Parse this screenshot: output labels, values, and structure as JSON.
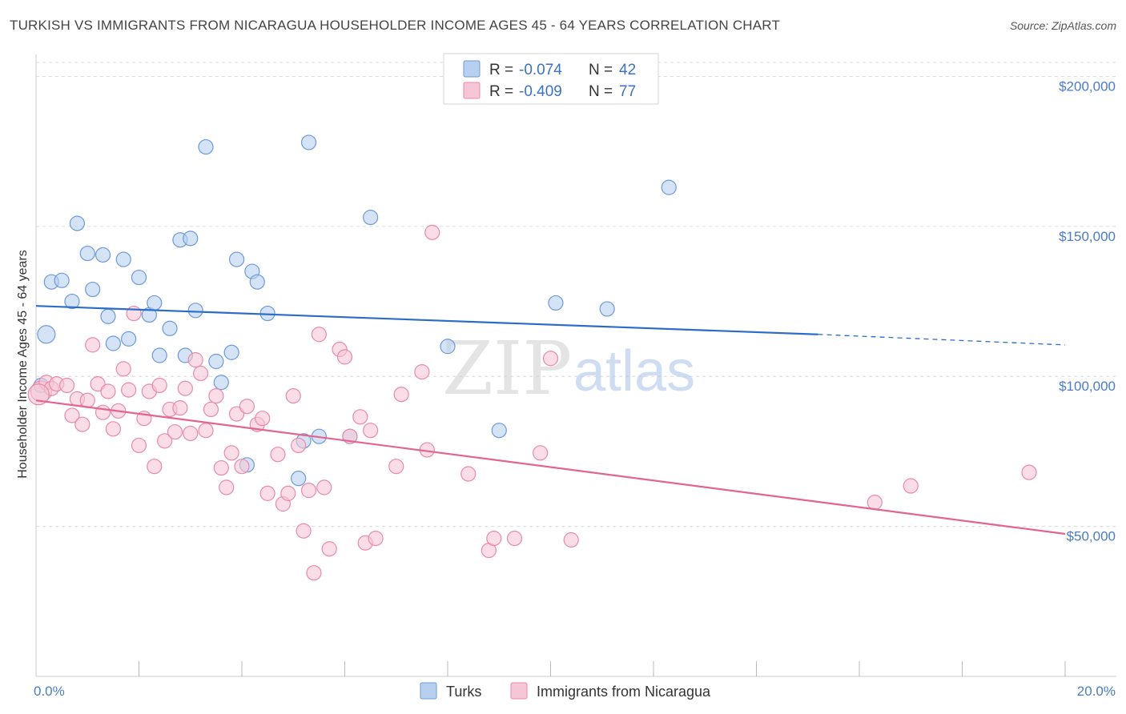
{
  "title": "TURKISH VS IMMIGRANTS FROM NICARAGUA HOUSEHOLDER INCOME AGES 45 - 64 YEARS CORRELATION CHART",
  "source": "Source: ZipAtlas.com",
  "watermark": {
    "zip": "ZIP",
    "atlas": "atlas"
  },
  "legend": {
    "rows": [
      {
        "r_label": "R =",
        "r_value": "-0.074",
        "n_label": "N =",
        "n_value": "42"
      },
      {
        "r_label": "R =",
        "r_value": "-0.409",
        "n_label": "N =",
        "n_value": "77"
      }
    ]
  },
  "colors": {
    "turks_fill": "#b8d0f0",
    "turks_stroke": "#6d9ad8",
    "turks_line": "#2b6cc9",
    "nic_fill": "#f7c6d6",
    "nic_stroke": "#e88aa9",
    "nic_line": "#e2648f",
    "grid": "#dcdcdc",
    "axis_text": "#4a7cc7"
  },
  "chart_data": {
    "type": "scatter",
    "title": "TURKISH VS IMMIGRANTS FROM NICARAGUA HOUSEHOLDER INCOME AGES 45 - 64 YEARS CORRELATION CHART",
    "xlabel": "",
    "ylabel": "Householder Income Ages 45 - 64 years",
    "xlim": [
      0,
      20
    ],
    "ylim": [
      0,
      210000
    ],
    "x_tick_labels": [
      "0.0%",
      "20.0%"
    ],
    "y_ticks": [
      50000,
      100000,
      150000,
      200000
    ],
    "y_tick_labels": [
      "$50,000",
      "$100,000",
      "$150,000",
      "$200,000"
    ],
    "grid": true,
    "legend_position": "top-center",
    "series": [
      {
        "name": "Turks",
        "r": -0.074,
        "n": 42,
        "points": [
          [
            0.2,
            114000
          ],
          [
            0.3,
            131500
          ],
          [
            0.5,
            132000
          ],
          [
            0.7,
            125000
          ],
          [
            0.8,
            151000
          ],
          [
            1.0,
            141000
          ],
          [
            1.1,
            129000
          ],
          [
            1.3,
            140500
          ],
          [
            1.4,
            120000
          ],
          [
            1.5,
            111000
          ],
          [
            1.7,
            139000
          ],
          [
            1.8,
            112500
          ],
          [
            2.0,
            133000
          ],
          [
            2.2,
            120500
          ],
          [
            2.3,
            124500
          ],
          [
            2.4,
            107000
          ],
          [
            2.6,
            116000
          ],
          [
            2.8,
            145500
          ],
          [
            2.9,
            107000
          ],
          [
            3.0,
            146000
          ],
          [
            3.1,
            122000
          ],
          [
            3.3,
            176500
          ],
          [
            3.5,
            105000
          ],
          [
            3.6,
            98000
          ],
          [
            3.8,
            108000
          ],
          [
            3.9,
            139000
          ],
          [
            4.1,
            70500
          ],
          [
            4.2,
            135000
          ],
          [
            4.3,
            131500
          ],
          [
            4.5,
            121000
          ],
          [
            5.1,
            66000
          ],
          [
            5.2,
            78500
          ],
          [
            5.3,
            178000
          ],
          [
            5.5,
            80000
          ],
          [
            6.1,
            80000
          ],
          [
            6.5,
            153000
          ],
          [
            8.0,
            110000
          ],
          [
            9.0,
            82000
          ],
          [
            10.1,
            124500
          ],
          [
            11.1,
            122500
          ],
          [
            12.3,
            163000
          ],
          [
            0.1,
            97000
          ]
        ],
        "trend": {
          "x0": 0,
          "y0": 123500,
          "x1": 15.2,
          "y1": 114000,
          "dashed_to_x": 20,
          "dashed_to_y": 110500
        }
      },
      {
        "name": "Immigrants from Nicaragua",
        "r": -0.409,
        "n": 77,
        "points": [
          [
            0.1,
            95000
          ],
          [
            0.2,
            98000
          ],
          [
            0.3,
            96000
          ],
          [
            0.4,
            97500
          ],
          [
            0.6,
            97000
          ],
          [
            0.7,
            87000
          ],
          [
            0.8,
            92500
          ],
          [
            0.9,
            84000
          ],
          [
            1.0,
            92000
          ],
          [
            1.1,
            110500
          ],
          [
            1.2,
            97500
          ],
          [
            1.3,
            88000
          ],
          [
            1.4,
            95000
          ],
          [
            1.5,
            82500
          ],
          [
            1.6,
            88500
          ],
          [
            1.7,
            102500
          ],
          [
            1.8,
            95500
          ],
          [
            1.9,
            121000
          ],
          [
            2.0,
            77000
          ],
          [
            2.1,
            86000
          ],
          [
            2.2,
            95000
          ],
          [
            2.3,
            70000
          ],
          [
            2.4,
            97000
          ],
          [
            2.5,
            78500
          ],
          [
            2.6,
            89000
          ],
          [
            2.7,
            81500
          ],
          [
            2.8,
            89500
          ],
          [
            2.9,
            96000
          ],
          [
            3.0,
            81000
          ],
          [
            3.1,
            105500
          ],
          [
            3.2,
            101000
          ],
          [
            3.3,
            82000
          ],
          [
            3.4,
            89000
          ],
          [
            3.5,
            93500
          ],
          [
            3.6,
            69500
          ],
          [
            3.7,
            63000
          ],
          [
            3.8,
            74500
          ],
          [
            3.9,
            87500
          ],
          [
            4.0,
            70000
          ],
          [
            4.1,
            90000
          ],
          [
            4.3,
            84000
          ],
          [
            4.4,
            86000
          ],
          [
            4.5,
            61000
          ],
          [
            4.7,
            74000
          ],
          [
            4.8,
            57500
          ],
          [
            4.9,
            61000
          ],
          [
            5.0,
            93500
          ],
          [
            5.1,
            77000
          ],
          [
            5.2,
            48500
          ],
          [
            5.3,
            62000
          ],
          [
            5.4,
            34500
          ],
          [
            5.5,
            114000
          ],
          [
            5.6,
            63000
          ],
          [
            5.7,
            42500
          ],
          [
            5.9,
            109000
          ],
          [
            6.0,
            106500
          ],
          [
            6.1,
            80000
          ],
          [
            6.3,
            86500
          ],
          [
            6.4,
            44500
          ],
          [
            6.5,
            82000
          ],
          [
            6.6,
            46000
          ],
          [
            7.0,
            70000
          ],
          [
            7.1,
            94000
          ],
          [
            7.5,
            101500
          ],
          [
            7.6,
            75500
          ],
          [
            7.7,
            148000
          ],
          [
            8.4,
            67500
          ],
          [
            8.8,
            42000
          ],
          [
            8.9,
            46000
          ],
          [
            9.3,
            46000
          ],
          [
            9.8,
            74500
          ],
          [
            10.0,
            106000
          ],
          [
            10.4,
            45500
          ],
          [
            16.3,
            58000
          ],
          [
            17.0,
            63500
          ],
          [
            19.3,
            68000
          ],
          [
            0.05,
            94000
          ]
        ],
        "trend": {
          "x0": 0,
          "y0": 92000,
          "x1": 20,
          "y1": 47500
        }
      }
    ]
  }
}
